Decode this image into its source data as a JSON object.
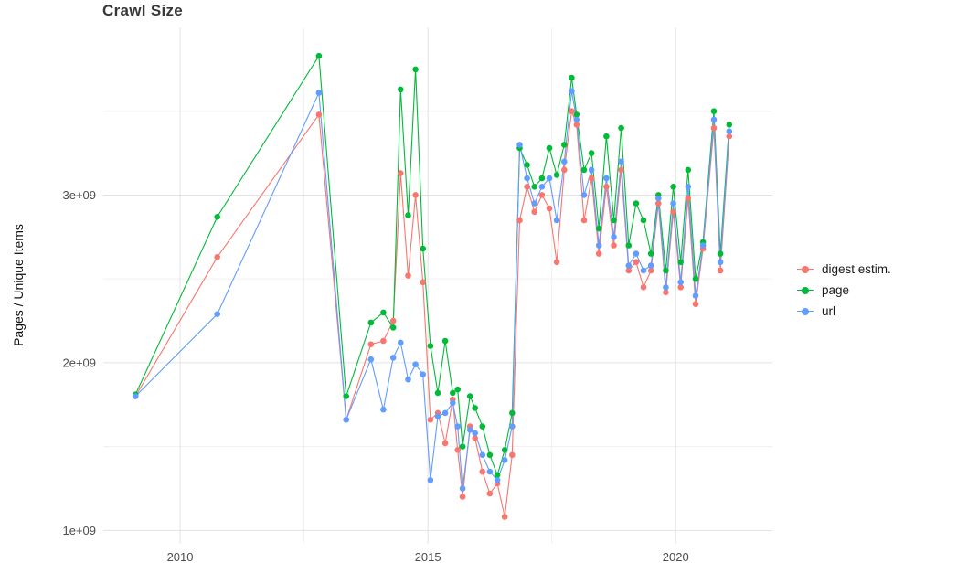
{
  "chart": {
    "title": "Crawl Size",
    "ylabel": "Pages / Unique Items",
    "x_ticks": [
      "2010",
      "2015",
      "2020"
    ],
    "y_ticks": [
      "1e+09",
      "2e+09",
      "3e+09"
    ]
  },
  "legend": {
    "items": [
      {
        "label": "digest estim.",
        "color": "#F8766D"
      },
      {
        "label": "page",
        "color": "#00BA38"
      },
      {
        "label": "url",
        "color": "#619CFF"
      }
    ]
  },
  "chart_data": {
    "type": "line",
    "title": "Crawl Size",
    "xlabel": "",
    "ylabel": "Pages / Unique Items",
    "grid": true,
    "legend_position": "right",
    "point_style": "circle",
    "marker_radius": 3.3,
    "xlim": [
      2008.45,
      2021.95
    ],
    "ylim": [
      920000000.0,
      4000000000.0
    ],
    "x_tick_values": [
      2010,
      2015,
      2020
    ],
    "x_tick_labels": [
      "2010",
      "2015",
      "2020"
    ],
    "y_tick_values": [
      1000000000.0,
      2000000000.0,
      3000000000.0
    ],
    "y_tick_labels": [
      "1e+09",
      "2e+09",
      "3e+09"
    ],
    "x_minor_ticks": [
      2012.5,
      2017.5
    ],
    "y_minor_ticks": [
      1500000000.0,
      2500000000.0,
      3500000000.0
    ],
    "x": [
      2009.1,
      2010.75,
      2012.8,
      2013.35,
      2013.85,
      2014.1,
      2014.3,
      2014.45,
      2014.6,
      2014.75,
      2014.9,
      2015.05,
      2015.2,
      2015.35,
      2015.5,
      2015.6,
      2015.7,
      2015.85,
      2015.95,
      2016.1,
      2016.25,
      2016.4,
      2016.55,
      2016.7,
      2016.85,
      2017.0,
      2017.15,
      2017.3,
      2017.45,
      2017.6,
      2017.75,
      2017.9,
      2018.0,
      2018.15,
      2018.3,
      2018.45,
      2018.6,
      2018.75,
      2018.9,
      2019.05,
      2019.2,
      2019.35,
      2019.5,
      2019.65,
      2019.8,
      2019.95,
      2020.1,
      2020.25,
      2020.4,
      2020.55,
      2020.77,
      2020.9,
      2021.08
    ],
    "series": [
      {
        "name": "digest estim.",
        "color": "#F8766D",
        "values": [
          1800000000.0,
          2630000000.0,
          3480000000.0,
          1660000000.0,
          2110000000.0,
          2130000000.0,
          2250000000.0,
          3130000000.0,
          2520000000.0,
          3000000000.0,
          2480000000.0,
          1660000000.0,
          1700000000.0,
          1520000000.0,
          1780000000.0,
          1480000000.0,
          1200000000.0,
          1620000000.0,
          1550000000.0,
          1350000000.0,
          1220000000.0,
          1280000000.0,
          1080000000.0,
          1450000000.0,
          2850000000.0,
          3050000000.0,
          2900000000.0,
          3000000000.0,
          2920000000.0,
          2600000000.0,
          3150000000.0,
          3500000000.0,
          3420000000.0,
          2850000000.0,
          3100000000.0,
          2650000000.0,
          3050000000.0,
          2700000000.0,
          3150000000.0,
          2550000000.0,
          2600000000.0,
          2450000000.0,
          2550000000.0,
          2950000000.0,
          2420000000.0,
          2900000000.0,
          2450000000.0,
          2980000000.0,
          2350000000.0,
          2680000000.0,
          3400000000.0,
          2550000000.0,
          3350000000.0
        ]
      },
      {
        "name": "page",
        "color": "#00BA38",
        "values": [
          1810000000.0,
          2870000000.0,
          3830000000.0,
          1800000000.0,
          2240000000.0,
          2300000000.0,
          2210000000.0,
          3630000000.0,
          2880000000.0,
          3750000000.0,
          2680000000.0,
          2100000000.0,
          1820000000.0,
          2130000000.0,
          1820000000.0,
          1840000000.0,
          1500000000.0,
          1800000000.0,
          1730000000.0,
          1620000000.0,
          1450000000.0,
          1330000000.0,
          1480000000.0,
          1700000000.0,
          3280000000.0,
          3180000000.0,
          3050000000.0,
          3100000000.0,
          3280000000.0,
          3120000000.0,
          3300000000.0,
          3700000000.0,
          3480000000.0,
          3150000000.0,
          3250000000.0,
          2800000000.0,
          3350000000.0,
          2850000000.0,
          3400000000.0,
          2700000000.0,
          2950000000.0,
          2850000000.0,
          2650000000.0,
          3000000000.0,
          2550000000.0,
          3050000000.0,
          2600000000.0,
          3150000000.0,
          2500000000.0,
          2720000000.0,
          3500000000.0,
          2650000000.0,
          3420000000.0
        ]
      },
      {
        "name": "url",
        "color": "#619CFF",
        "values": [
          1800000000.0,
          2290000000.0,
          3610000000.0,
          1660000000.0,
          2020000000.0,
          1720000000.0,
          2030000000.0,
          2120000000.0,
          1900000000.0,
          1990000000.0,
          1930000000.0,
          1300000000.0,
          1680000000.0,
          1700000000.0,
          1760000000.0,
          1620000000.0,
          1250000000.0,
          1600000000.0,
          1580000000.0,
          1450000000.0,
          1350000000.0,
          1300000000.0,
          1420000000.0,
          1620000000.0,
          3300000000.0,
          3100000000.0,
          2950000000.0,
          3050000000.0,
          3100000000.0,
          2850000000.0,
          3200000000.0,
          3620000000.0,
          3450000000.0,
          3000000000.0,
          3150000000.0,
          2700000000.0,
          3100000000.0,
          2750000000.0,
          3200000000.0,
          2580000000.0,
          2650000000.0,
          2550000000.0,
          2580000000.0,
          2980000000.0,
          2450000000.0,
          2950000000.0,
          2480000000.0,
          3050000000.0,
          2400000000.0,
          2700000000.0,
          3450000000.0,
          2600000000.0,
          3380000000.0
        ]
      }
    ]
  }
}
